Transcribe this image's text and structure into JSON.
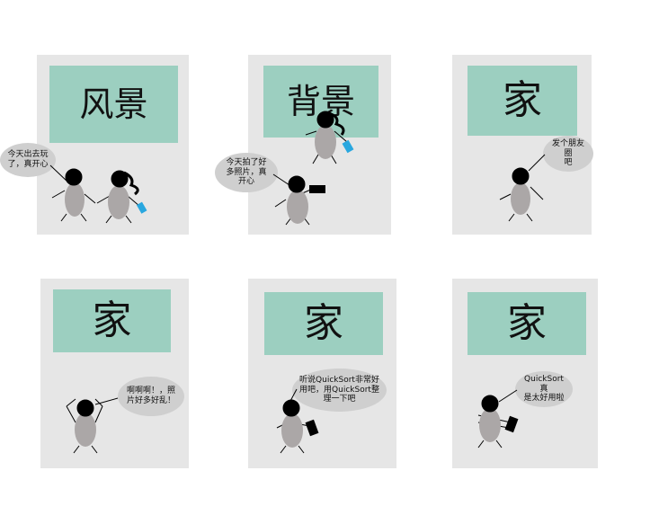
{
  "panels": [
    {
      "sign": "风景",
      "bubble": "今天出去玩\n了，真开心"
    },
    {
      "sign": "背景",
      "bubble": "今天拍了好\n多照片，真\n开心"
    },
    {
      "sign": "家",
      "bubble": "发个朋友圈\n吧"
    },
    {
      "sign": "家",
      "bubble": "啊啊啊！，照\n片好多好乱！"
    },
    {
      "sign": "家",
      "bubble": "听说QuickSort非常好\n用吧，用QuickSort整\n理一下吧"
    },
    {
      "sign": "家",
      "bubble": "QuickSort真\n是太好用啦"
    }
  ],
  "colors": {
    "panel": "#e6e6e6",
    "sign": "#9ccfc0",
    "bubble": "#cfcfcf",
    "body": "#aba7a7",
    "head": "#000000",
    "phone": "#29a7df"
  }
}
